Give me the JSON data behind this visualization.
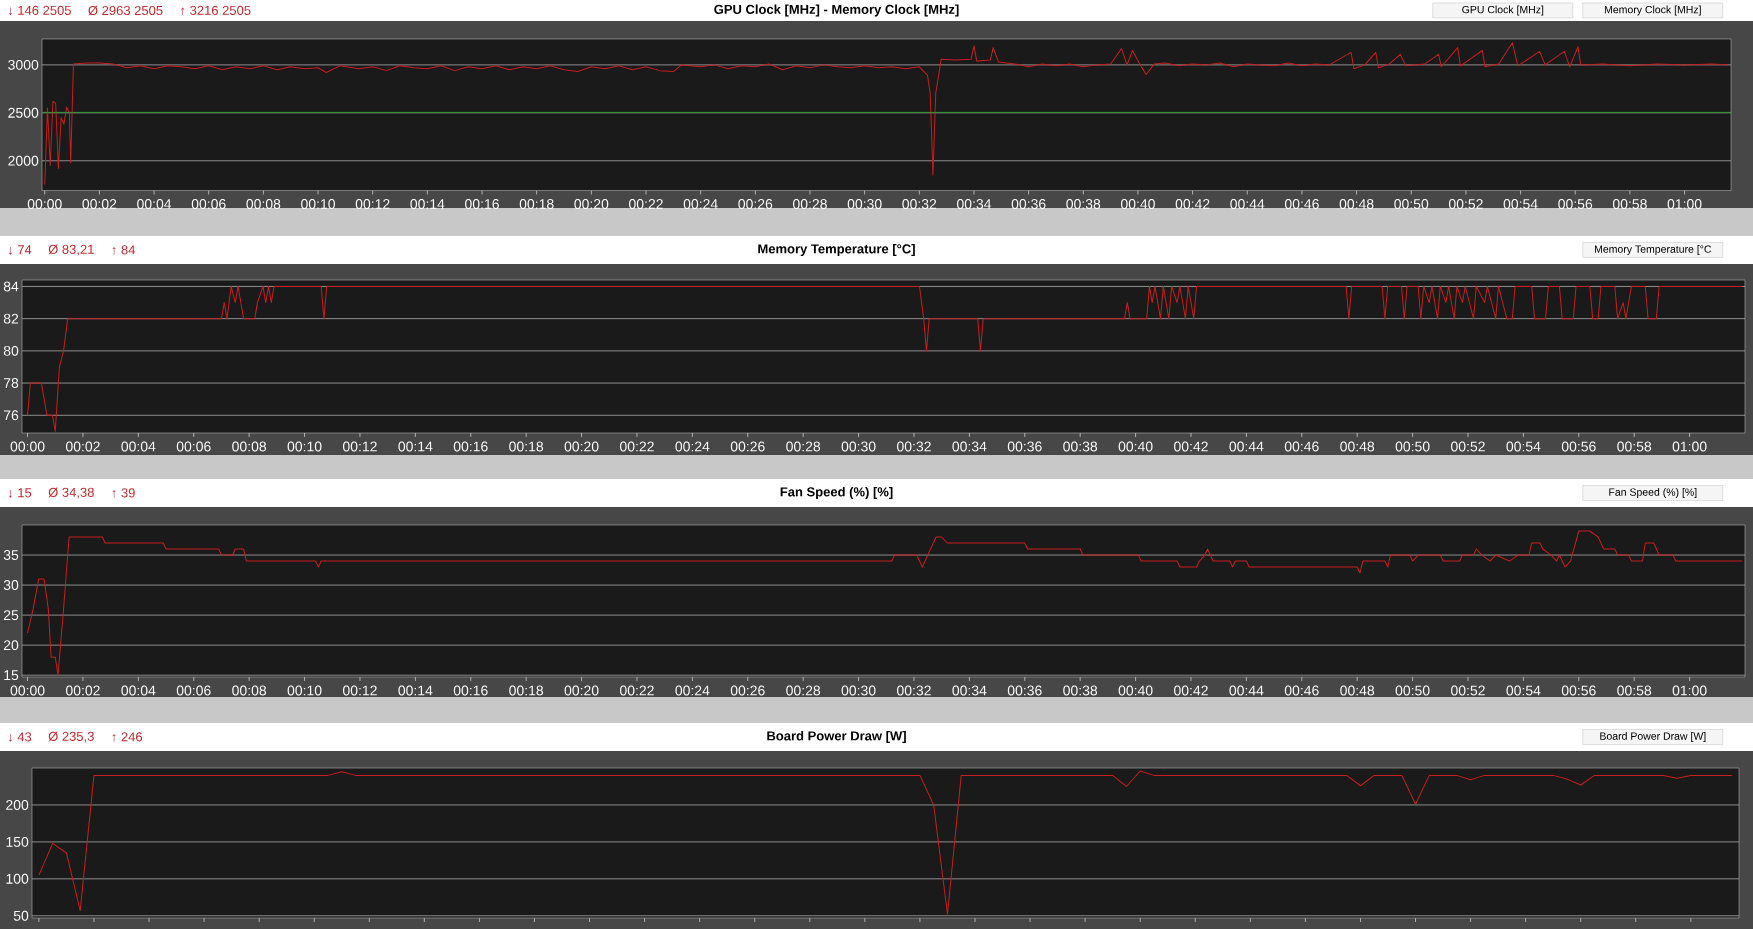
{
  "chart_data": [
    {
      "type": "line",
      "title": "GPU Clock [MHz]  -  Memory Clock [MHz]",
      "annotations": [
        "↓ 146 2505",
        "Ø 2963 2505",
        "↑ 3216 2505",
        "GPU Clock [MHz]",
        "Memory Clock [MHz]"
      ],
      "xlim": [
        -0.1,
        61.7
      ],
      "ylim": [
        1690,
        3270
      ],
      "xticks": [
        {
          "value": 0,
          "label": "00:00"
        },
        {
          "value": 2,
          "label": "00:02"
        },
        {
          "value": 4,
          "label": "00:04"
        },
        {
          "value": 6,
          "label": "00:06"
        },
        {
          "value": 8,
          "label": "00:08"
        },
        {
          "value": 10,
          "label": "00:10"
        },
        {
          "value": 12,
          "label": "00:12"
        },
        {
          "value": 14,
          "label": "00:14"
        },
        {
          "value": 16,
          "label": "00:16"
        },
        {
          "value": 18,
          "label": "00:18"
        },
        {
          "value": 20,
          "label": "00:20"
        },
        {
          "value": 22,
          "label": "00:22"
        },
        {
          "value": 24,
          "label": "00:24"
        },
        {
          "value": 26,
          "label": "00:26"
        },
        {
          "value": 28,
          "label": "00:28"
        },
        {
          "value": 30,
          "label": "00:30"
        },
        {
          "value": 32,
          "label": "00:32"
        },
        {
          "value": 34,
          "label": "00:34"
        },
        {
          "value": 36,
          "label": "00:36"
        },
        {
          "value": 38,
          "label": "00:38"
        },
        {
          "value": 40,
          "label": "00:40"
        },
        {
          "value": 42,
          "label": "00:42"
        },
        {
          "value": 44,
          "label": "00:44"
        },
        {
          "value": 46,
          "label": "00:46"
        },
        {
          "value": 48,
          "label": "00:48"
        },
        {
          "value": 50,
          "label": "00:50"
        },
        {
          "value": 52,
          "label": "00:52"
        },
        {
          "value": 54,
          "label": "00:54"
        },
        {
          "value": 56,
          "label": "00:56"
        },
        {
          "value": 58,
          "label": "00:58"
        },
        {
          "value": 60,
          "label": "01:00"
        }
      ],
      "yticks": [
        2000,
        2500,
        3000
      ],
      "grid": "y",
      "series": [
        {
          "color": "#c81e1e",
          "x": [
            0,
            0.1,
            0.2,
            0.3,
            0.4,
            0.5,
            0.6,
            0.7,
            0.8,
            0.9,
            0.95,
            1.05,
            1.5,
            2.0,
            2.5,
            3.0,
            3.5,
            4.0,
            4.5,
            5.0,
            5.5,
            6.0,
            6.5,
            7.0,
            7.5,
            8.0,
            8.5,
            9.0,
            9.5,
            10.0,
            10.3,
            10.8,
            11.5,
            12.0,
            12.5,
            13.0,
            13.5,
            14.0,
            14.5,
            15.0,
            15.5,
            16.0,
            16.5,
            17.0,
            17.5,
            18.0,
            18.5,
            19.0,
            19.5,
            20.0,
            20.5,
            21.0,
            21.5,
            22.0,
            22.5,
            23.0,
            23.3,
            24.0,
            24.5,
            25.0,
            25.5,
            26.0,
            26.5,
            27.0,
            27.5,
            28.0,
            28.5,
            29.0,
            29.5,
            30.0,
            30.5,
            31.0,
            31.5,
            32.0,
            32.3,
            32.4,
            32.5,
            32.6,
            32.8,
            33.3,
            33.9,
            34.0,
            34.1,
            34.6,
            34.7,
            34.9,
            35.5,
            36.0,
            36.5,
            37.0,
            37.5,
            38.0,
            38.5,
            39.0,
            39.4,
            39.6,
            39.8,
            40.1,
            40.3,
            40.6,
            41.0,
            41.5,
            42.0,
            42.5,
            43.0,
            43.5,
            44.0,
            44.5,
            45.0,
            45.5,
            46.0,
            46.5,
            47.0,
            47.8,
            47.9,
            48.3,
            48.7,
            48.8,
            49.2,
            49.6,
            49.8,
            50.5,
            51.0,
            51.1,
            51.7,
            51.8,
            52.6,
            52.7,
            53.2,
            53.7,
            53.9,
            54.7,
            54.9,
            55.6,
            55.8,
            56.1,
            56.2,
            57.0,
            58.0,
            59.0,
            60.0,
            61.0,
            61.6
          ],
          "values": [
            1750,
            2550,
            1950,
            2620,
            2600,
            1920,
            2450,
            2380,
            2560,
            2500,
            1980,
            3010,
            3020,
            3020,
            3010,
            2970,
            2990,
            2960,
            2990,
            2980,
            2960,
            2990,
            2950,
            2980,
            2960,
            2990,
            2950,
            2980,
            2960,
            2970,
            2920,
            2990,
            2960,
            2980,
            2940,
            2990,
            2970,
            2960,
            2990,
            2940,
            2980,
            2960,
            2990,
            2950,
            2980,
            2960,
            2990,
            2950,
            2930,
            2980,
            2960,
            2990,
            2950,
            2980,
            2940,
            2930,
            3000,
            2980,
            3000,
            2960,
            2990,
            2980,
            3010,
            2950,
            2990,
            2970,
            3000,
            2980,
            2970,
            2990,
            2970,
            2980,
            2960,
            2980,
            2890,
            2700,
            1850,
            2700,
            3060,
            3050,
            3060,
            3200,
            3040,
            3050,
            3180,
            3030,
            3010,
            2980,
            3010,
            2990,
            3010,
            2980,
            3000,
            3010,
            3170,
            3000,
            3150,
            2990,
            2900,
            3010,
            3020,
            2990,
            3010,
            3000,
            3020,
            2980,
            3010,
            3000,
            2990,
            3020,
            2990,
            3010,
            3000,
            3130,
            2960,
            3000,
            3130,
            2970,
            3010,
            3110,
            2990,
            3010,
            3110,
            2980,
            3180,
            2990,
            3150,
            2980,
            3010,
            3230,
            2990,
            3140,
            3000,
            3140,
            2980,
            3190,
            3000,
            3010,
            2990,
            3010,
            3000,
            3010,
            3000
          ]
        },
        {
          "color": "#2e9b2e",
          "x": [
            -0.1,
            61.7
          ],
          "values": [
            2505,
            2505
          ]
        }
      ]
    },
    {
      "type": "line",
      "title": "Memory Temperature [°C]",
      "annotations": [
        "↓ 74",
        "Ø 83,21",
        "↑ 84",
        "Memory Temperature [°C"
      ],
      "xlim": [
        -0.2,
        62
      ],
      "ylim": [
        74.9,
        84.4
      ],
      "xticks": [
        {
          "value": 0,
          "label": "00:00"
        },
        {
          "value": 2,
          "label": "00:02"
        },
        {
          "value": 4,
          "label": "00:04"
        },
        {
          "value": 6,
          "label": "00:06"
        },
        {
          "value": 8,
          "label": "00:08"
        },
        {
          "value": 10,
          "label": "00:10"
        },
        {
          "value": 12,
          "label": "00:12"
        },
        {
          "value": 14,
          "label": "00:14"
        },
        {
          "value": 16,
          "label": "00:16"
        },
        {
          "value": 18,
          "label": "00:18"
        },
        {
          "value": 20,
          "label": "00:20"
        },
        {
          "value": 22,
          "label": "00:22"
        },
        {
          "value": 24,
          "label": "00:24"
        },
        {
          "value": 26,
          "label": "00:26"
        },
        {
          "value": 28,
          "label": "00:28"
        },
        {
          "value": 30,
          "label": "00:30"
        },
        {
          "value": 32,
          "label": "00:32"
        },
        {
          "value": 34,
          "label": "00:34"
        },
        {
          "value": 36,
          "label": "00:36"
        },
        {
          "value": 38,
          "label": "00:38"
        },
        {
          "value": 40,
          "label": "00:40"
        },
        {
          "value": 42,
          "label": "00:42"
        },
        {
          "value": 44,
          "label": "00:44"
        },
        {
          "value": 46,
          "label": "00:46"
        },
        {
          "value": 48,
          "label": "00:48"
        },
        {
          "value": 50,
          "label": "00:50"
        },
        {
          "value": 52,
          "label": "00:52"
        },
        {
          "value": 54,
          "label": "00:54"
        },
        {
          "value": 56,
          "label": "00:56"
        },
        {
          "value": 58,
          "label": "00:58"
        },
        {
          "value": 60,
          "label": "01:00"
        }
      ],
      "yticks": [
        76,
        78,
        80,
        82,
        84
      ],
      "grid": "y",
      "series": [
        {
          "color": "#c81e1e",
          "x": [
            0,
            0.1,
            0.5,
            0.6,
            0.7,
            0.9,
            1.0,
            1.15,
            1.3,
            1.45,
            7.0,
            7.1,
            7.2,
            7.35,
            7.5,
            7.6,
            7.8,
            8.2,
            8.3,
            8.5,
            8.6,
            8.7,
            8.8,
            8.9,
            10.6,
            10.7,
            10.8,
            32.2,
            32.35,
            32.45,
            32.55,
            34.3,
            34.4,
            34.5,
            39.6,
            39.7,
            39.8,
            40.4,
            40.5,
            40.6,
            40.7,
            40.9,
            41.0,
            41.2,
            41.3,
            41.5,
            41.6,
            41.8,
            41.9,
            42.1,
            42.2,
            47.6,
            47.7,
            47.8,
            48.9,
            49.0,
            49.1,
            49.6,
            49.7,
            49.8,
            50.2,
            50.3,
            50.4,
            50.6,
            50.7,
            50.9,
            51.0,
            51.2,
            51.3,
            51.5,
            51.6,
            51.8,
            51.9,
            52.2,
            52.3,
            52.6,
            52.7,
            53.0,
            53.1,
            53.4,
            53.6,
            53.7,
            54.3,
            54.4,
            54.8,
            54.9,
            55.3,
            55.4,
            55.8,
            55.9,
            56.4,
            56.5,
            56.7,
            56.8,
            57.3,
            57.4,
            57.6,
            57.7,
            57.9,
            58.4,
            58.5,
            58.8,
            58.9,
            61.9
          ],
          "values": [
            76,
            78,
            78,
            77,
            76,
            76,
            75,
            79,
            80,
            82,
            82,
            83,
            82,
            84,
            83,
            84,
            82,
            82,
            83,
            84,
            83,
            84,
            83,
            84,
            84,
            82,
            84,
            84,
            82,
            80,
            82,
            82,
            80,
            82,
            82,
            83,
            82,
            82,
            84,
            83,
            84,
            82,
            84,
            82,
            84,
            83,
            84,
            82,
            84,
            82,
            84,
            84,
            82,
            84,
            84,
            82,
            84,
            84,
            82,
            84,
            84,
            82,
            84,
            83,
            84,
            82,
            84,
            83,
            84,
            82,
            84,
            83,
            84,
            82,
            84,
            83,
            84,
            82,
            84,
            82,
            82,
            84,
            84,
            82,
            82,
            84,
            84,
            82,
            82,
            84,
            84,
            82,
            82,
            84,
            84,
            82,
            83,
            82,
            84,
            84,
            82,
            82,
            84,
            84
          ]
        }
      ]
    },
    {
      "type": "line",
      "title": "Fan Speed (%) [%]",
      "annotations": [
        "↓ 15",
        "Ø 34,38",
        "↑ 39",
        "Fan Speed (%) [%]"
      ],
      "xlim": [
        -0.2,
        62
      ],
      "ylim": [
        14.7,
        40
      ],
      "xticks": [
        {
          "value": 0,
          "label": "00:00"
        },
        {
          "value": 2,
          "label": "00:02"
        },
        {
          "value": 4,
          "label": "00:04"
        },
        {
          "value": 6,
          "label": "00:06"
        },
        {
          "value": 8,
          "label": "00:08"
        },
        {
          "value": 10,
          "label": "00:10"
        },
        {
          "value": 12,
          "label": "00:12"
        },
        {
          "value": 14,
          "label": "00:14"
        },
        {
          "value": 16,
          "label": "00:16"
        },
        {
          "value": 18,
          "label": "00:18"
        },
        {
          "value": 20,
          "label": "00:20"
        },
        {
          "value": 22,
          "label": "00:22"
        },
        {
          "value": 24,
          "label": "00:24"
        },
        {
          "value": 26,
          "label": "00:26"
        },
        {
          "value": 28,
          "label": "00:28"
        },
        {
          "value": 30,
          "label": "00:30"
        },
        {
          "value": 32,
          "label": "00:32"
        },
        {
          "value": 34,
          "label": "00:34"
        },
        {
          "value": 36,
          "label": "00:36"
        },
        {
          "value": 38,
          "label": "00:38"
        },
        {
          "value": 40,
          "label": "00:40"
        },
        {
          "value": 42,
          "label": "00:42"
        },
        {
          "value": 44,
          "label": "00:44"
        },
        {
          "value": 46,
          "label": "00:46"
        },
        {
          "value": 48,
          "label": "00:48"
        },
        {
          "value": 50,
          "label": "00:50"
        },
        {
          "value": 52,
          "label": "00:52"
        },
        {
          "value": 54,
          "label": "00:54"
        },
        {
          "value": 56,
          "label": "00:56"
        },
        {
          "value": 58,
          "label": "00:58"
        },
        {
          "value": 60,
          "label": "01:00"
        }
      ],
      "yticks": [
        15,
        20,
        25,
        30,
        35
      ],
      "grid": "y",
      "series": [
        {
          "color": "#c81e1e",
          "x": [
            0,
            0.2,
            0.4,
            0.6,
            0.75,
            0.85,
            1.0,
            1.1,
            1.3,
            1.5,
            2.7,
            2.8,
            4.9,
            5.0,
            6.9,
            7.0,
            7.4,
            7.5,
            7.8,
            7.9,
            10.4,
            10.5,
            10.6,
            31.2,
            31.3,
            32.1,
            32.3,
            32.5,
            32.8,
            33.0,
            33.2,
            36.0,
            36.1,
            38.0,
            38.1,
            40.1,
            40.2,
            41.5,
            41.6,
            42.2,
            42.3,
            42.5,
            42.6,
            42.8,
            43.4,
            43.5,
            43.6,
            44.0,
            44.1,
            48.0,
            48.1,
            48.2,
            49.0,
            49.1,
            49.2,
            49.9,
            50.0,
            50.2,
            51.0,
            51.1,
            51.7,
            51.8,
            52.2,
            52.3,
            52.5,
            52.8,
            53.0,
            53.5,
            53.8,
            54.2,
            54.3,
            54.6,
            54.7,
            55.0,
            55.2,
            55.3,
            55.5,
            55.7,
            56.0,
            56.4,
            56.7,
            56.9,
            57.3,
            57.4,
            57.8,
            57.9,
            58.3,
            58.4,
            58.7,
            58.9,
            59.4,
            59.5,
            61.9
          ],
          "values": [
            22,
            26,
            31,
            31,
            26,
            18,
            18,
            15,
            26,
            38,
            38,
            37,
            37,
            36,
            36,
            35,
            35,
            36,
            36,
            34,
            34,
            33,
            34,
            34,
            35,
            35,
            33,
            35,
            38,
            38,
            37,
            37,
            36,
            36,
            35,
            35,
            34,
            34,
            33,
            33,
            34,
            35,
            36,
            34,
            34,
            33,
            34,
            34,
            33,
            33,
            32,
            34,
            34,
            33,
            35,
            35,
            34,
            35,
            35,
            34,
            34,
            35,
            35,
            36,
            35,
            34,
            35,
            34,
            35,
            35,
            37,
            37,
            36,
            35,
            34,
            35,
            33,
            34,
            39,
            39,
            38,
            36,
            36,
            35,
            35,
            34,
            34,
            37,
            37,
            35,
            35,
            34,
            34
          ]
        }
      ]
    },
    {
      "type": "line",
      "title": "Board Power Draw [W]",
      "annotations": [
        "↓ 43",
        "Ø 235,3",
        "↑ 246",
        "Board Power Draw [W]"
      ],
      "ylim": [
        47,
        250
      ],
      "tick_labels": "y",
      "categories": [
        null,
        null,
        null,
        null,
        null,
        null,
        null,
        null,
        null,
        null,
        null,
        null,
        null,
        null,
        null,
        null,
        null,
        null,
        null,
        null,
        null,
        null,
        null,
        null,
        null,
        null,
        null,
        null,
        null,
        null,
        null,
        null,
        null,
        null,
        null,
        null,
        null,
        null,
        null,
        null,
        null,
        null,
        null,
        null,
        null,
        null,
        null,
        null,
        null,
        null,
        null,
        null,
        null,
        null,
        null,
        null,
        null,
        null,
        null,
        null,
        null,
        null,
        null,
        null,
        null,
        null,
        null,
        null,
        null,
        null,
        null,
        null,
        null,
        null,
        null,
        null,
        null,
        null,
        null,
        null,
        null,
        null,
        null,
        null,
        null,
        null,
        null,
        null,
        null,
        null,
        null,
        null,
        null,
        null,
        null,
        null,
        null,
        null,
        null,
        null,
        null,
        null,
        null,
        null,
        null,
        null,
        null,
        null,
        null,
        null,
        null,
        null,
        null,
        null,
        null,
        null,
        null,
        null,
        null,
        null,
        null,
        null,
        null,
        null
      ],
      "yticks": [
        50,
        100,
        150,
        200
      ],
      "grid": "y",
      "series": [
        {
          "color": "#c81e1e",
          "values": [
            105,
            148,
            135,
            57,
            240,
            240,
            240,
            240,
            240,
            240,
            240,
            240,
            240,
            240,
            240,
            240,
            240,
            240,
            240,
            240,
            240,
            240,
            245,
            240,
            240,
            240,
            240,
            240,
            240,
            240,
            240,
            240,
            240,
            240,
            240,
            240,
            240,
            240,
            240,
            240,
            240,
            240,
            240,
            240,
            240,
            240,
            240,
            240,
            240,
            240,
            240,
            240,
            240,
            240,
            240,
            240,
            240,
            240,
            240,
            240,
            240,
            240,
            240,
            240,
            240,
            200,
            52,
            240,
            240,
            240,
            240,
            240,
            240,
            240,
            240,
            240,
            240,
            240,
            240,
            225,
            246,
            240,
            240,
            240,
            240,
            240,
            240,
            240,
            240,
            240,
            240,
            240,
            240,
            240,
            240,
            240,
            226,
            240,
            240,
            240,
            201,
            240,
            240,
            240,
            234,
            240,
            240,
            240,
            240,
            240,
            240,
            235,
            227,
            240,
            240,
            240,
            240,
            240,
            240,
            236,
            240,
            240,
            240,
            240
          ]
        }
      ]
    }
  ]
}
